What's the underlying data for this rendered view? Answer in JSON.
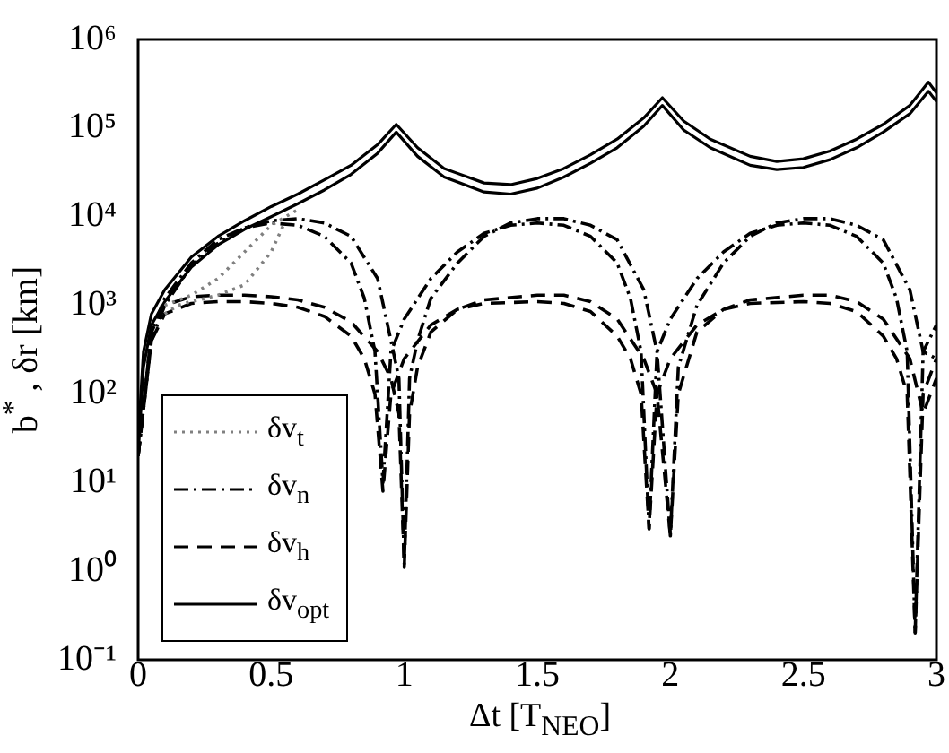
{
  "chart_data": {
    "type": "line",
    "xlabel": "Δt [T$_{NEO}$]",
    "ylabel": "b$^{*}$ , δr [km]",
    "log": "y",
    "xlim": [
      0,
      3
    ],
    "xticks": [
      0,
      0.5,
      1,
      1.5,
      2,
      2.5,
      3
    ],
    "ylim": [
      0.1,
      1000000
    ],
    "yticks": [
      {
        "value": 0.1,
        "label": "10⁻¹"
      },
      {
        "value": 1,
        "label": "10⁰"
      },
      {
        "value": 10,
        "label": "10¹"
      },
      {
        "value": 100,
        "label": "10²"
      },
      {
        "value": 1000,
        "label": "10³"
      },
      {
        "value": 10000,
        "label": "10⁴"
      },
      {
        "value": 100000,
        "label": "10⁵"
      },
      {
        "value": 1000000,
        "label": "10⁶"
      }
    ],
    "legend": "bottom left",
    "series": [
      {
        "name": "δv$_{t}$",
        "color": "#808080",
        "line_style": "dotted",
        "x": [
          0.1,
          0.15,
          0.2,
          0.3,
          0.4,
          0.5,
          0.55
        ],
        "values": [
          800,
          1000,
          1100,
          1300,
          1700,
          4000,
          8500
        ]
      },
      {
        "color": "#808080",
        "line_style": "dotted",
        "x": [
          0.1,
          0.2,
          0.3,
          0.4,
          0.5,
          0.6
        ],
        "values": [
          1000,
          1300,
          2000,
          4000,
          8000,
          12000
        ]
      },
      {
        "name": "δv$_{n}$",
        "color": "#000000",
        "line_style": "dashdot",
        "x": [
          0,
          0.05,
          0.1,
          0.2,
          0.3,
          0.4,
          0.5,
          0.6,
          0.7,
          0.8,
          0.85,
          0.89,
          0.92,
          0.95,
          1.0,
          1.1,
          1.2,
          1.3,
          1.4,
          1.5,
          1.6,
          1.7,
          1.8,
          1.85,
          1.89,
          1.92,
          1.95,
          2.0,
          2.1,
          2.2,
          2.3,
          2.4,
          2.5,
          2.6,
          2.7,
          2.8,
          2.85,
          2.89,
          2.92,
          2.95,
          3
        ],
        "values": [
          20,
          500,
          1200,
          3000,
          5500,
          7500,
          8500,
          8000,
          6000,
          3000,
          1200,
          300,
          10,
          300,
          700,
          2000,
          4000,
          6500,
          8000,
          8500,
          8000,
          6000,
          3000,
          1200,
          300,
          3,
          300,
          700,
          2000,
          4000,
          6500,
          8000,
          8500,
          8000,
          6000,
          3000,
          1200,
          300,
          0.2,
          300,
          600
        ]
      },
      {
        "color": "#000000",
        "line_style": "dashdot",
        "x": [
          0,
          0.05,
          0.1,
          0.2,
          0.3,
          0.4,
          0.5,
          0.6,
          0.7,
          0.8,
          0.9,
          0.95,
          0.98,
          1.0,
          1.02,
          1.05,
          1.1,
          1.2,
          1.3,
          1.4,
          1.5,
          1.6,
          1.7,
          1.8,
          1.9,
          1.95,
          2.0,
          2.03,
          2.1,
          2.2,
          2.3,
          2.4,
          2.5,
          2.6,
          2.7,
          2.8,
          2.9,
          2.95,
          3
        ],
        "values": [
          20,
          400,
          1000,
          2800,
          5000,
          7500,
          9000,
          9500,
          8500,
          6000,
          2000,
          400,
          150,
          1.2,
          150,
          400,
          1200,
          3000,
          6000,
          8500,
          9500,
          9500,
          8000,
          5500,
          1500,
          300,
          2.5,
          200,
          1000,
          3000,
          6000,
          8500,
          9500,
          9500,
          8000,
          5500,
          1500,
          300,
          250
        ]
      },
      {
        "name": "δv$_{h}$",
        "color": "#000000",
        "line_style": "dashed",
        "x": [
          0,
          0.05,
          0.1,
          0.2,
          0.3,
          0.4,
          0.5,
          0.6,
          0.7,
          0.8,
          0.85,
          0.89,
          0.92,
          0.95,
          1.0,
          1.1,
          1.2,
          1.3,
          1.5,
          1.6,
          1.7,
          1.8,
          1.85,
          1.89,
          1.92,
          1.95,
          2.0,
          2.1,
          2.2,
          2.3,
          2.5,
          2.6,
          2.7,
          2.8,
          2.85,
          2.89,
          2.92,
          2.95,
          3
        ],
        "values": [
          20,
          400,
          800,
          1050,
          1100,
          1100,
          1050,
          950,
          750,
          450,
          250,
          100,
          8,
          100,
          250,
          600,
          900,
          1050,
          1100,
          1050,
          850,
          450,
          250,
          100,
          3,
          100,
          250,
          600,
          900,
          1050,
          1100,
          1050,
          850,
          450,
          250,
          100,
          0.2,
          100,
          250
        ]
      },
      {
        "color": "#000000",
        "line_style": "dashed",
        "x": [
          0,
          0.05,
          0.1,
          0.2,
          0.3,
          0.4,
          0.5,
          0.6,
          0.7,
          0.8,
          0.9,
          0.95,
          0.98,
          1.0,
          1.02,
          1.05,
          1.1,
          1.2,
          1.3,
          1.5,
          1.6,
          1.7,
          1.8,
          1.9,
          1.95,
          2.0,
          2.03,
          2.1,
          2.2,
          2.3,
          2.5,
          2.6,
          2.7,
          2.8,
          2.9,
          2.95,
          3
        ],
        "values": [
          20,
          500,
          1000,
          1250,
          1300,
          1300,
          1250,
          1150,
          950,
          650,
          300,
          150,
          60,
          1.1,
          60,
          200,
          500,
          900,
          1150,
          1300,
          1300,
          1100,
          700,
          250,
          100,
          2.5,
          100,
          500,
          900,
          1150,
          1300,
          1300,
          1100,
          700,
          250,
          60,
          150
        ]
      },
      {
        "name": "δv$_{opt}$",
        "color": "#000000",
        "line_style": "solid",
        "x": [
          0,
          0.02,
          0.05,
          0.1,
          0.2,
          0.3,
          0.4,
          0.5,
          0.6,
          0.7,
          0.8,
          0.9,
          0.97,
          1.05,
          1.15,
          1.3,
          1.4,
          1.5,
          1.6,
          1.7,
          1.8,
          1.9,
          1.97,
          2.05,
          2.15,
          2.3,
          2.4,
          2.5,
          2.6,
          2.7,
          2.8,
          2.9,
          2.97,
          3
        ],
        "values": [
          30,
          300,
          800,
          1500,
          3500,
          6000,
          9000,
          13000,
          18000,
          26000,
          38000,
          65000,
          110000,
          60000,
          35000,
          24000,
          23000,
          27000,
          35000,
          50000,
          75000,
          130000,
          220000,
          120000,
          75000,
          48000,
          42000,
          45000,
          55000,
          75000,
          110000,
          180000,
          330000,
          250000
        ]
      },
      {
        "color": "#000000",
        "line_style": "solid",
        "x": [
          0,
          0.02,
          0.05,
          0.1,
          0.2,
          0.3,
          0.4,
          0.5,
          0.6,
          0.7,
          0.8,
          0.9,
          0.97,
          1.05,
          1.15,
          1.3,
          1.4,
          1.5,
          1.6,
          1.7,
          1.8,
          1.9,
          1.97,
          2.05,
          2.15,
          2.3,
          2.4,
          2.5,
          2.6,
          2.7,
          2.8,
          2.9,
          2.97,
          3
        ],
        "values": [
          20,
          200,
          600,
          1100,
          2700,
          4800,
          7200,
          10000,
          14000,
          20000,
          30000,
          52000,
          90000,
          48000,
          28000,
          19000,
          18000,
          21000,
          28000,
          40000,
          60000,
          105000,
          180000,
          95000,
          60000,
          38000,
          34000,
          36000,
          44000,
          60000,
          90000,
          145000,
          260000,
          200000
        ]
      }
    ]
  }
}
